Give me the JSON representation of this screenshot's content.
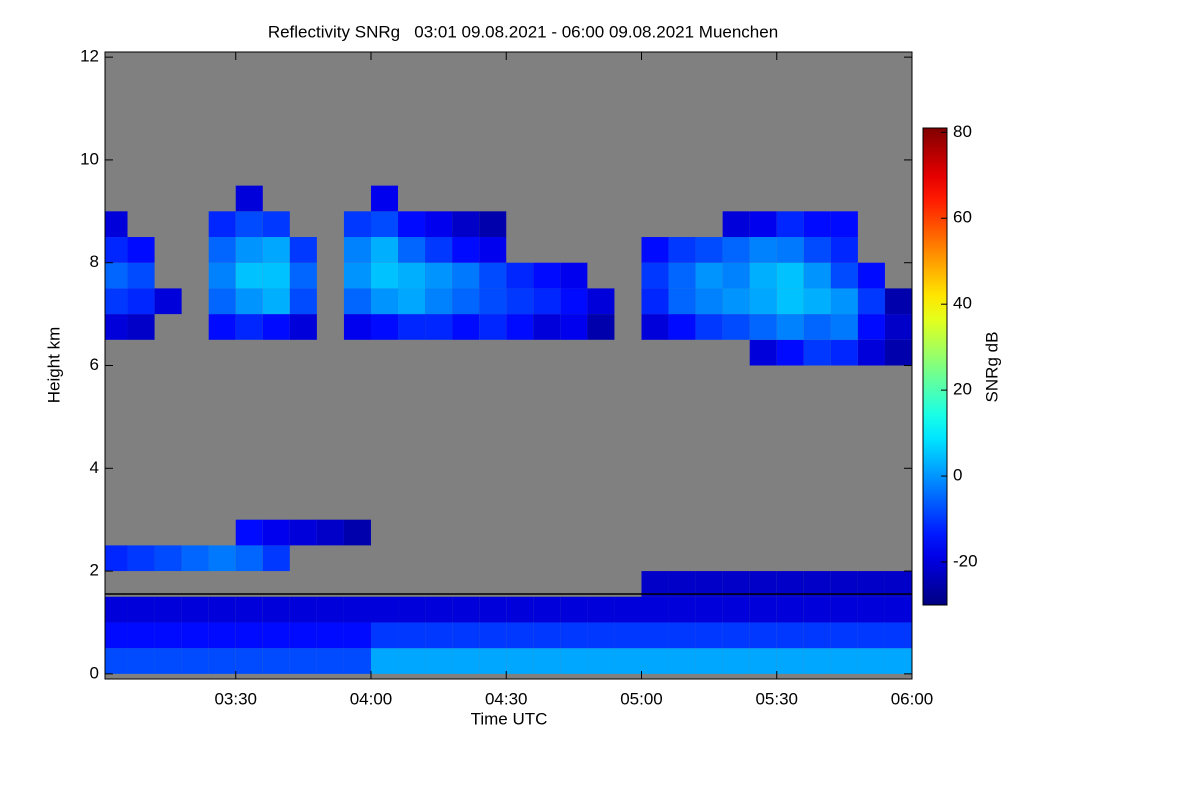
{
  "chart_data": {
    "type": "heatmap",
    "title": "Reflectivity SNRg   03:01 09.08.2021 - 06:00 09.08.2021 Muenchen",
    "x_label": "Time UTC",
    "y_label": "Height km",
    "colorbar_label": "SNRg dB",
    "xlim": [
      3.0167,
      6.0
    ],
    "xticks": [
      {
        "value": 3.5,
        "label": "03:30"
      },
      {
        "value": 4.0,
        "label": "04:00"
      },
      {
        "value": 4.5,
        "label": "04:30"
      },
      {
        "value": 5.0,
        "label": "05:00"
      },
      {
        "value": 5.5,
        "label": "05:30"
      },
      {
        "value": 6.0,
        "label": "06:00"
      }
    ],
    "ylim": [
      -0.1,
      12.1
    ],
    "yticks": [
      0,
      2,
      4,
      6,
      8,
      10,
      12
    ],
    "clim": [
      -30,
      81
    ],
    "cticks": [
      -20,
      0,
      20,
      40,
      60,
      80
    ],
    "colormap": "jet",
    "no_data_color": "#808080",
    "x_edges": [
      3.0,
      3.1,
      3.2,
      3.3,
      3.4,
      3.5,
      3.6,
      3.7,
      3.8,
      3.9,
      4.0,
      4.1,
      4.2,
      4.3,
      4.4,
      4.5,
      4.6,
      4.7,
      4.8,
      4.9,
      5.0,
      5.1,
      5.2,
      5.3,
      5.4,
      5.5,
      5.6,
      5.7,
      5.8,
      5.9,
      6.0
    ],
    "y_edges": [
      0,
      0.5,
      1,
      1.5,
      2,
      2.5,
      3,
      3.5,
      4,
      4.5,
      5,
      5.5,
      6,
      6.5,
      7,
      7.5,
      8,
      8.5,
      9,
      9.5,
      10,
      10.5,
      11,
      11.5,
      12
    ],
    "z": [
      [
        -8,
        -8,
        -8,
        -8,
        -8,
        -8,
        -8,
        -8,
        -8,
        -8,
        2,
        2,
        2,
        2,
        2,
        2,
        2,
        2,
        2,
        2,
        2,
        2,
        2,
        2,
        2,
        2,
        2,
        2,
        2,
        2
      ],
      [
        -15,
        -15,
        -15,
        -15,
        -15,
        -15,
        -15,
        -15,
        -15,
        -15,
        -10,
        -10,
        -10,
        -10,
        -10,
        -10,
        -10,
        -10,
        -10,
        -10,
        -10,
        -10,
        -10,
        -10,
        -10,
        -10,
        -10,
        -10,
        -10,
        -10
      ],
      [
        -20,
        -20,
        -20,
        -20,
        -20,
        -20,
        -20,
        -20,
        -20,
        -20,
        -20,
        -20,
        -20,
        -20,
        -20,
        -20,
        -20,
        -20,
        -20,
        -20,
        -20,
        -20,
        -20,
        -20,
        -20,
        -20,
        -20,
        -20,
        -20,
        -20
      ],
      [
        null,
        null,
        null,
        null,
        null,
        null,
        null,
        null,
        null,
        null,
        null,
        null,
        null,
        null,
        null,
        null,
        null,
        null,
        null,
        null,
        -22,
        -22,
        -22,
        -22,
        -22,
        -22,
        -22,
        -22,
        -22,
        -22
      ],
      [
        -12,
        -10,
        -8,
        -5,
        -3,
        -5,
        -10,
        null,
        null,
        null,
        null,
        null,
        null,
        null,
        null,
        null,
        null,
        null,
        null,
        null,
        null,
        null,
        null,
        null,
        null,
        null,
        null,
        null,
        null,
        null
      ],
      [
        null,
        null,
        null,
        null,
        null,
        -15,
        -18,
        -20,
        -22,
        -25,
        null,
        null,
        null,
        null,
        null,
        null,
        null,
        null,
        null,
        null,
        null,
        null,
        null,
        null,
        null,
        null,
        null,
        null,
        null,
        null
      ],
      [
        null,
        null,
        null,
        null,
        null,
        null,
        null,
        null,
        null,
        null,
        null,
        null,
        null,
        null,
        null,
        null,
        null,
        null,
        null,
        null,
        null,
        null,
        null,
        null,
        null,
        null,
        null,
        null,
        null,
        null
      ],
      [
        null,
        null,
        null,
        null,
        null,
        null,
        null,
        null,
        null,
        null,
        null,
        null,
        null,
        null,
        null,
        null,
        null,
        null,
        null,
        null,
        null,
        null,
        null,
        null,
        null,
        null,
        null,
        null,
        null,
        null
      ],
      [
        null,
        null,
        null,
        null,
        null,
        null,
        null,
        null,
        null,
        null,
        null,
        null,
        null,
        null,
        null,
        null,
        null,
        null,
        null,
        null,
        null,
        null,
        null,
        null,
        null,
        null,
        null,
        null,
        null,
        null
      ],
      [
        null,
        null,
        null,
        null,
        null,
        null,
        null,
        null,
        null,
        null,
        null,
        null,
        null,
        null,
        null,
        null,
        null,
        null,
        null,
        null,
        null,
        null,
        null,
        null,
        null,
        null,
        null,
        null,
        null,
        null
      ],
      [
        null,
        null,
        null,
        null,
        null,
        null,
        null,
        null,
        null,
        null,
        null,
        null,
        null,
        null,
        null,
        null,
        null,
        null,
        null,
        null,
        null,
        null,
        null,
        null,
        null,
        null,
        null,
        null,
        null,
        null
      ],
      [
        null,
        null,
        null,
        null,
        null,
        null,
        null,
        null,
        null,
        null,
        null,
        null,
        null,
        null,
        null,
        null,
        null,
        null,
        null,
        null,
        null,
        null,
        null,
        null,
        null,
        null,
        null,
        null,
        null,
        null
      ],
      [
        null,
        null,
        null,
        null,
        null,
        null,
        null,
        null,
        null,
        null,
        null,
        null,
        null,
        null,
        null,
        null,
        null,
        null,
        null,
        null,
        null,
        null,
        null,
        null,
        -20,
        -15,
        -10,
        -12,
        -20,
        -25
      ],
      [
        -20,
        -22,
        null,
        null,
        -15,
        -12,
        -15,
        -20,
        null,
        -18,
        -15,
        -12,
        -12,
        -15,
        -12,
        -15,
        -20,
        -18,
        -25,
        null,
        -20,
        -15,
        -10,
        -8,
        -5,
        -2,
        -5,
        -3,
        -15,
        -22
      ],
      [
        -10,
        -12,
        -20,
        null,
        -5,
        0,
        3,
        -8,
        null,
        -5,
        0,
        2,
        -2,
        -5,
        -8,
        -10,
        -12,
        -15,
        -20,
        null,
        -12,
        -5,
        -2,
        0,
        2,
        5,
        3,
        0,
        -10,
        -25
      ],
      [
        -5,
        -8,
        null,
        null,
        -2,
        5,
        5,
        -5,
        null,
        0,
        5,
        3,
        0,
        -3,
        -8,
        -12,
        -15,
        -18,
        null,
        null,
        -10,
        -5,
        0,
        -2,
        3,
        5,
        0,
        -8,
        -15,
        null
      ],
      [
        -12,
        -15,
        null,
        null,
        -5,
        0,
        2,
        -10,
        null,
        -2,
        3,
        -5,
        -10,
        -15,
        -18,
        null,
        null,
        null,
        null,
        null,
        -15,
        -10,
        -8,
        -5,
        -2,
        -3,
        -8,
        -12,
        null,
        null
      ],
      [
        -20,
        null,
        null,
        null,
        -12,
        -8,
        -10,
        null,
        null,
        -10,
        -8,
        -15,
        -18,
        -22,
        -25,
        null,
        null,
        null,
        null,
        null,
        null,
        null,
        null,
        -20,
        -18,
        -12,
        -15,
        -15,
        null,
        null
      ],
      [
        null,
        null,
        null,
        null,
        null,
        -20,
        null,
        null,
        null,
        null,
        -18,
        null,
        null,
        null,
        null,
        null,
        null,
        null,
        null,
        null,
        null,
        null,
        null,
        null,
        null,
        null,
        null,
        null,
        null,
        null
      ],
      [
        null,
        null,
        null,
        null,
        null,
        null,
        null,
        null,
        null,
        null,
        null,
        null,
        null,
        null,
        null,
        null,
        null,
        null,
        null,
        null,
        null,
        null,
        null,
        null,
        null,
        null,
        null,
        null,
        null,
        null
      ],
      [
        null,
        null,
        null,
        null,
        null,
        null,
        null,
        null,
        null,
        null,
        null,
        null,
        null,
        null,
        null,
        null,
        null,
        null,
        null,
        null,
        null,
        null,
        null,
        null,
        null,
        null,
        null,
        null,
        null,
        null
      ],
      [
        null,
        null,
        null,
        null,
        null,
        null,
        null,
        null,
        null,
        null,
        null,
        null,
        null,
        null,
        null,
        null,
        null,
        null,
        null,
        null,
        null,
        null,
        null,
        null,
        null,
        null,
        null,
        null,
        null,
        null
      ],
      [
        null,
        null,
        null,
        null,
        null,
        null,
        null,
        null,
        null,
        null,
        null,
        null,
        null,
        null,
        null,
        null,
        null,
        null,
        null,
        null,
        null,
        null,
        null,
        null,
        null,
        null,
        null,
        null,
        null,
        null
      ],
      [
        null,
        null,
        null,
        null,
        null,
        null,
        null,
        null,
        null,
        null,
        null,
        null,
        null,
        null,
        null,
        null,
        null,
        null,
        null,
        null,
        null,
        null,
        null,
        null,
        null,
        null,
        null,
        null,
        null,
        null
      ]
    ]
  }
}
